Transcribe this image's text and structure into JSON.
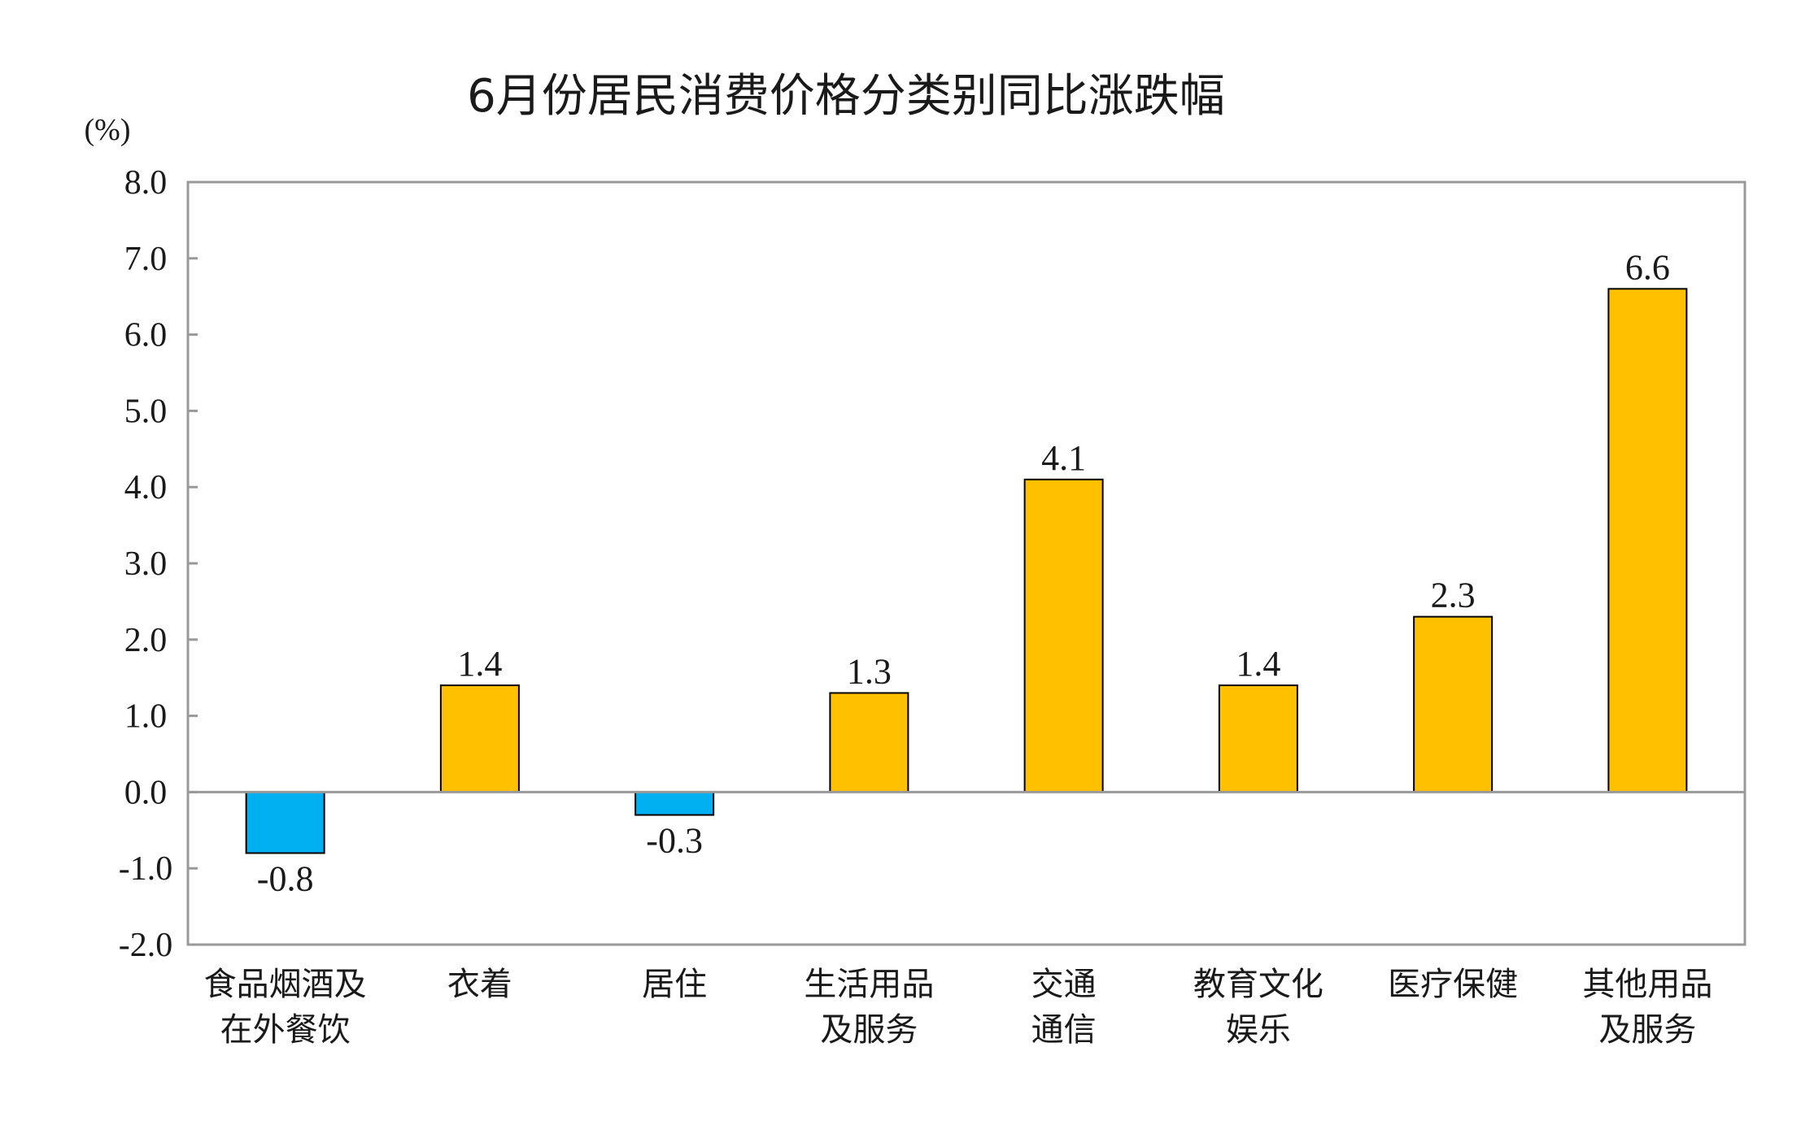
{
  "chart_data": {
    "type": "bar",
    "title": "6月份居民消费价格分类别同比涨跌幅",
    "unit_label": "(%)",
    "categories": [
      "食品烟酒及\n在外餐饮",
      "衣着",
      "居住",
      "生活用品\n及服务",
      "交通\n通信",
      "教育文化\n娱乐",
      "医疗保健",
      "其他用品\n及服务"
    ],
    "values": [
      -0.8,
      1.4,
      -0.3,
      1.3,
      4.1,
      1.4,
      2.3,
      6.6
    ],
    "value_labels": [
      "-0.8",
      "1.4",
      "-0.3",
      "1.3",
      "4.1",
      "1.4",
      "2.3",
      "6.6"
    ],
    "ylim": [
      -2.0,
      8.0
    ],
    "yticks": [
      -2.0,
      -1.0,
      0.0,
      1.0,
      2.0,
      3.0,
      4.0,
      5.0,
      6.0,
      7.0,
      8.0
    ],
    "ytick_labels": [
      "-2.0",
      "-1.0",
      "0.0",
      "1.0",
      "2.0",
      "3.0",
      "4.0",
      "5.0",
      "6.0",
      "7.0",
      "8.0"
    ],
    "grid": false,
    "colors": {
      "positive": "#FFC000",
      "negative": "#00B0F0",
      "bar_outline": "#000000",
      "frame": "#999999",
      "zero_line": "#999999",
      "text": "#1a1a1a"
    }
  }
}
